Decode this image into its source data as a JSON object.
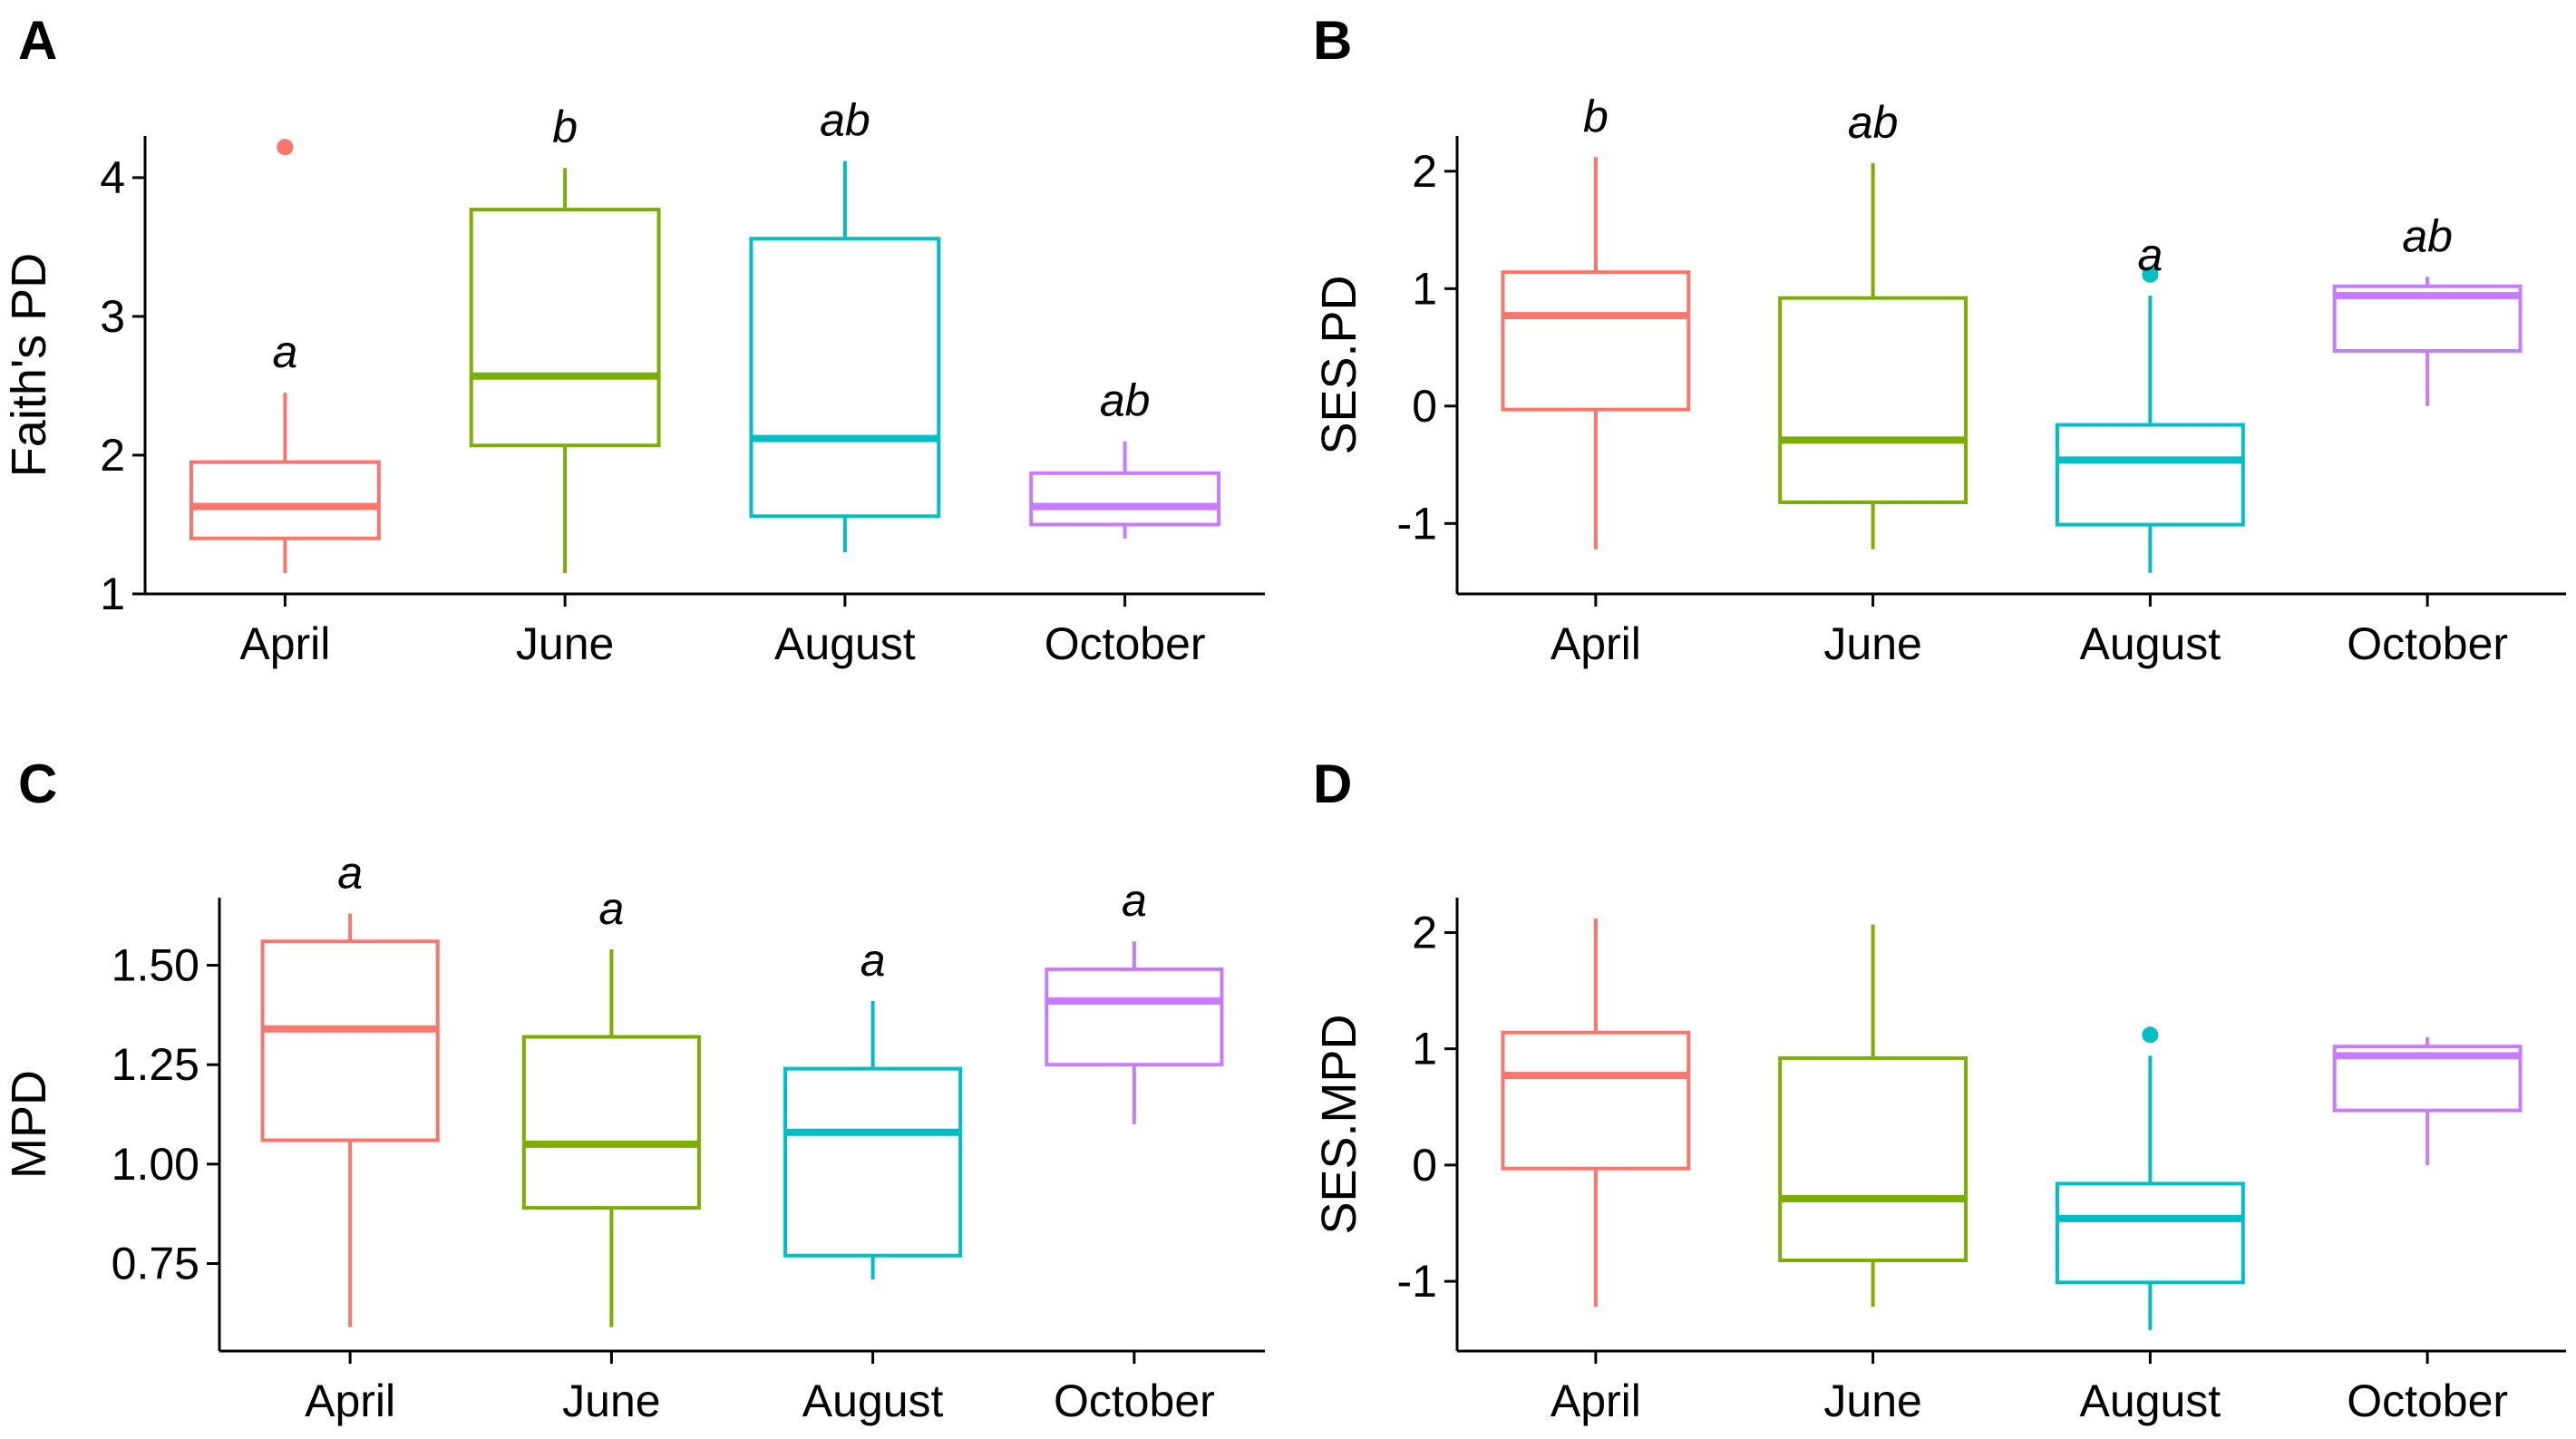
{
  "chart_data": [
    {
      "panel": "A",
      "type": "box",
      "ylabel": "Faith's PD",
      "ylim": [
        1,
        4.3
      ],
      "yticks": [
        1,
        2,
        3,
        4
      ],
      "ytick_labels": [
        "1",
        "2",
        "3",
        "4"
      ],
      "categories": [
        "April",
        "June",
        "August",
        "October"
      ],
      "boxes": [
        {
          "name": "April",
          "lower_whisker": 1.15,
          "q1": 1.4,
          "median": 1.63,
          "q3": 1.95,
          "upper_whisker": 2.45,
          "outliers": [
            4.22
          ],
          "letter": "a",
          "color": "#f8766d"
        },
        {
          "name": "June",
          "lower_whisker": 1.15,
          "q1": 2.07,
          "median": 2.57,
          "q3": 3.77,
          "upper_whisker": 4.07,
          "outliers": [],
          "letter": "b",
          "color": "#7cae00"
        },
        {
          "name": "August",
          "lower_whisker": 1.3,
          "q1": 1.56,
          "median": 2.12,
          "q3": 3.56,
          "upper_whisker": 4.12,
          "outliers": [],
          "letter": "ab",
          "color": "#00bfc4"
        },
        {
          "name": "October",
          "lower_whisker": 1.4,
          "q1": 1.5,
          "median": 1.63,
          "q3": 1.87,
          "upper_whisker": 2.1,
          "outliers": [],
          "letter": "ab",
          "color": "#c77cff"
        }
      ]
    },
    {
      "panel": "B",
      "type": "box",
      "ylabel": "SES.PD",
      "ylim": [
        -1.6,
        2.3
      ],
      "yticks": [
        -1,
        0,
        1,
        2
      ],
      "ytick_labels": [
        "-1",
        "0",
        "1",
        "2"
      ],
      "categories": [
        "April",
        "June",
        "August",
        "October"
      ],
      "boxes": [
        {
          "name": "April",
          "lower_whisker": -1.22,
          "q1": -0.03,
          "median": 0.77,
          "q3": 1.14,
          "upper_whisker": 2.12,
          "outliers": [],
          "letter": "b",
          "color": "#f8766d"
        },
        {
          "name": "June",
          "lower_whisker": -1.22,
          "q1": -0.82,
          "median": -0.29,
          "q3": 0.92,
          "upper_whisker": 2.07,
          "outliers": [],
          "letter": "ab",
          "color": "#7cae00"
        },
        {
          "name": "August",
          "lower_whisker": -1.42,
          "q1": -1.01,
          "median": -0.46,
          "q3": -0.16,
          "upper_whisker": 0.94,
          "outliers": [
            1.12
          ],
          "letter": "a",
          "color": "#00bfc4"
        },
        {
          "name": "October",
          "lower_whisker": 0.0,
          "q1": 0.47,
          "median": 0.94,
          "q3": 1.02,
          "upper_whisker": 1.1,
          "outliers": [],
          "letter": "ab",
          "color": "#c77cff"
        }
      ]
    },
    {
      "panel": "C",
      "type": "box",
      "ylabel": "MPD",
      "ylim": [
        0.53,
        1.67
      ],
      "yticks": [
        0.75,
        1.0,
        1.25,
        1.5
      ],
      "ytick_labels": [
        "0.75",
        "1.00",
        "1.25",
        "1.50"
      ],
      "categories": [
        "April",
        "June",
        "August",
        "October"
      ],
      "boxes": [
        {
          "name": "April",
          "lower_whisker": 0.59,
          "q1": 1.06,
          "median": 1.34,
          "q3": 1.56,
          "upper_whisker": 1.63,
          "outliers": [],
          "letter": "a",
          "color": "#f8766d"
        },
        {
          "name": "June",
          "lower_whisker": 0.59,
          "q1": 0.89,
          "median": 1.05,
          "q3": 1.32,
          "upper_whisker": 1.54,
          "outliers": [],
          "letter": "a",
          "color": "#7cae00"
        },
        {
          "name": "August",
          "lower_whisker": 0.71,
          "q1": 0.77,
          "median": 1.08,
          "q3": 1.24,
          "upper_whisker": 1.41,
          "outliers": [],
          "letter": "a",
          "color": "#00bfc4"
        },
        {
          "name": "October",
          "lower_whisker": 1.1,
          "q1": 1.25,
          "median": 1.41,
          "q3": 1.49,
          "upper_whisker": 1.56,
          "outliers": [],
          "letter": "a",
          "color": "#c77cff"
        }
      ]
    },
    {
      "panel": "D",
      "type": "box",
      "ylabel": "SES.MPD",
      "ylim": [
        -1.6,
        2.3
      ],
      "yticks": [
        -1,
        0,
        1,
        2
      ],
      "ytick_labels": [
        "-1",
        "0",
        "1",
        "2"
      ],
      "categories": [
        "April",
        "June",
        "August",
        "October"
      ],
      "boxes": [
        {
          "name": "April",
          "lower_whisker": -1.22,
          "q1": -0.03,
          "median": 0.77,
          "q3": 1.14,
          "upper_whisker": 2.12,
          "outliers": [],
          "letter": "",
          "color": "#f8766d"
        },
        {
          "name": "June",
          "lower_whisker": -1.22,
          "q1": -0.82,
          "median": -0.29,
          "q3": 0.92,
          "upper_whisker": 2.07,
          "outliers": [],
          "letter": "",
          "color": "#7cae00"
        },
        {
          "name": "August",
          "lower_whisker": -1.42,
          "q1": -1.01,
          "median": -0.46,
          "q3": -0.16,
          "upper_whisker": 0.94,
          "outliers": [
            1.12
          ],
          "letter": "",
          "color": "#00bfc4"
        },
        {
          "name": "October",
          "lower_whisker": 0.0,
          "q1": 0.47,
          "median": 0.94,
          "q3": 1.02,
          "upper_whisker": 1.1,
          "outliers": [],
          "letter": "",
          "color": "#c77cff"
        }
      ]
    }
  ]
}
